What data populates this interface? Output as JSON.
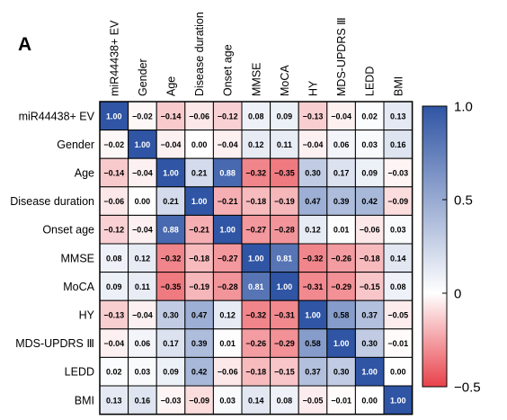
{
  "panel_label": "A",
  "chart_data": {
    "type": "heatmap",
    "row_labels": [
      "miR44438+ EV",
      "Gender",
      "Age",
      "Disease duration",
      "Onset age",
      "MMSE",
      "MoCA",
      "HY",
      "MDS-UPDRS Ⅲ",
      "LEDD",
      "BMI"
    ],
    "col_labels": [
      "miR44438+ EV",
      "Gender",
      "Age",
      "Disease duration",
      "Onset age",
      "MMSE",
      "MoCA",
      "HY",
      "MDS-UPDRS Ⅲ",
      "LEDD",
      "BMI"
    ],
    "values": [
      [
        1.0,
        -0.02,
        -0.14,
        -0.06,
        -0.12,
        0.08,
        0.09,
        -0.13,
        -0.04,
        0.02,
        0.13
      ],
      [
        -0.02,
        1.0,
        -0.04,
        0.0,
        -0.04,
        0.12,
        0.11,
        -0.04,
        0.06,
        0.03,
        0.16
      ],
      [
        -0.14,
        -0.04,
        1.0,
        0.21,
        0.88,
        -0.32,
        -0.35,
        0.3,
        0.17,
        0.09,
        -0.03
      ],
      [
        -0.06,
        0.0,
        0.21,
        1.0,
        -0.21,
        -0.18,
        -0.19,
        0.47,
        0.39,
        0.42,
        -0.09
      ],
      [
        -0.12,
        -0.04,
        0.88,
        -0.21,
        1.0,
        -0.27,
        -0.28,
        0.12,
        0.01,
        -0.06,
        0.03
      ],
      [
        0.08,
        0.12,
        -0.32,
        -0.18,
        -0.27,
        1.0,
        0.81,
        -0.32,
        -0.26,
        -0.18,
        0.14
      ],
      [
        0.09,
        0.11,
        -0.35,
        -0.19,
        -0.28,
        0.81,
        1.0,
        -0.31,
        -0.29,
        -0.15,
        0.08
      ],
      [
        -0.13,
        -0.04,
        0.3,
        0.47,
        0.12,
        -0.32,
        -0.31,
        1.0,
        0.58,
        0.37,
        -0.05
      ],
      [
        -0.04,
        0.06,
        0.17,
        0.39,
        0.01,
        -0.26,
        -0.29,
        0.58,
        1.0,
        0.3,
        -0.01
      ],
      [
        0.02,
        0.03,
        0.09,
        0.42,
        -0.06,
        -0.18,
        -0.15,
        0.37,
        0.3,
        1.0,
        0.0
      ],
      [
        0.13,
        0.16,
        -0.03,
        -0.09,
        0.03,
        0.14,
        0.08,
        -0.05,
        -0.01,
        0.0,
        1.0
      ]
    ],
    "colorbar": {
      "range": [
        -0.5,
        1.0
      ],
      "ticks": [
        1.0,
        0.5,
        0,
        -0.5
      ],
      "tick_labels": [
        "1.0",
        "0.5",
        "0",
        "−0.5"
      ],
      "colors": {
        "low": "#e8414a",
        "mid": "#ffffff",
        "high": "#2f55a4"
      }
    }
  }
}
